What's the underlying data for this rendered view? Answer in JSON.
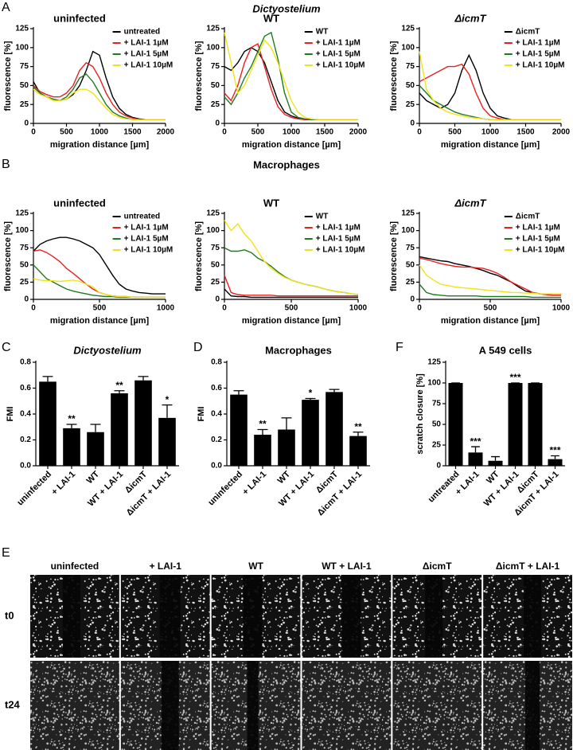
{
  "panel_labels": [
    "A",
    "B",
    "C",
    "D",
    "F",
    "E"
  ],
  "section_titles": [
    {
      "text": "Dictyostelium",
      "style": "italic"
    },
    {
      "text": "Macrophages",
      "style": "normal"
    }
  ],
  "chart_data": [
    {
      "type": "line",
      "title": "uninfected",
      "title_style": "normal",
      "xlabel": "migration distance [µm]",
      "ylabel": "fluorescence [%]",
      "x": [
        0,
        100,
        200,
        300,
        400,
        500,
        600,
        700,
        800,
        900,
        1000,
        1100,
        1200,
        1300,
        1400,
        1500,
        1600,
        1700,
        1800,
        1900,
        2000
      ],
      "xlim": [
        0,
        2000
      ],
      "xticks": [
        0,
        500,
        1000,
        1500,
        2000
      ],
      "ylim": [
        0,
        125
      ],
      "yticks": [
        0,
        25,
        50,
        75,
        100,
        125
      ],
      "series": [
        {
          "name": "untreated",
          "color": "#000000",
          "values": [
            55,
            40,
            35,
            32,
            30,
            32,
            38,
            50,
            70,
            95,
            90,
            60,
            35,
            20,
            12,
            8,
            6,
            5,
            5,
            5,
            5
          ]
        },
        {
          "name": "+ LAI-1 1µM",
          "color": "#e8201f",
          "values": [
            50,
            42,
            38,
            35,
            35,
            40,
            50,
            70,
            80,
            75,
            60,
            40,
            25,
            15,
            10,
            7,
            5,
            5,
            5,
            5,
            5
          ]
        },
        {
          "name": "+ LAI-1 5µM",
          "color": "#1f7a1f",
          "values": [
            48,
            40,
            35,
            32,
            30,
            35,
            45,
            60,
            65,
            55,
            40,
            25,
            15,
            10,
            7,
            5,
            5,
            5,
            5,
            5,
            5
          ]
        },
        {
          "name": "+ LAI-1 10µM",
          "color": "#f2e21a",
          "values": [
            45,
            38,
            35,
            30,
            30,
            32,
            40,
            45,
            45,
            40,
            30,
            20,
            12,
            8,
            6,
            5,
            5,
            5,
            5,
            5,
            5
          ]
        }
      ]
    },
    {
      "type": "line",
      "title": "WT",
      "title_style": "normal",
      "xlabel": "migration distance [µm]",
      "ylabel": "fluorescence [%]",
      "x": [
        0,
        100,
        200,
        300,
        400,
        500,
        600,
        700,
        800,
        900,
        1000,
        1100,
        1200,
        1300,
        1400,
        1500,
        1600,
        1700,
        1800,
        1900,
        2000
      ],
      "xlim": [
        0,
        2000
      ],
      "xticks": [
        0,
        500,
        1000,
        1500,
        2000
      ],
      "ylim": [
        0,
        125
      ],
      "yticks": [
        0,
        25,
        50,
        75,
        100,
        125
      ],
      "series": [
        {
          "name": "WT",
          "color": "#000000",
          "values": [
            75,
            70,
            80,
            95,
            100,
            95,
            80,
            55,
            30,
            15,
            10,
            7,
            5,
            5,
            5,
            5,
            5,
            5,
            5,
            5,
            5
          ]
        },
        {
          "name": "+ LAI-1 1µM",
          "color": "#e8201f",
          "values": [
            40,
            30,
            50,
            80,
            100,
            105,
            75,
            45,
            22,
            12,
            8,
            6,
            5,
            5,
            5,
            5,
            5,
            5,
            5,
            5,
            5
          ]
        },
        {
          "name": "+ LAI-1 5µM",
          "color": "#1f7a1f",
          "values": [
            35,
            25,
            40,
            60,
            75,
            95,
            115,
            120,
            85,
            40,
            15,
            8,
            6,
            5,
            5,
            5,
            5,
            5,
            5,
            5,
            5
          ]
        },
        {
          "name": "+ LAI-1 10µM",
          "color": "#f2e21a",
          "values": [
            120,
            80,
            40,
            50,
            70,
            90,
            110,
            100,
            80,
            55,
            30,
            15,
            8,
            6,
            5,
            5,
            5,
            5,
            5,
            5,
            5
          ]
        }
      ]
    },
    {
      "type": "line",
      "title": "ΔicmT",
      "title_style": "italic",
      "xlabel": "migration distance [µm]",
      "ylabel": "fluorescence [%]",
      "x": [
        0,
        100,
        200,
        300,
        400,
        500,
        600,
        700,
        800,
        900,
        1000,
        1100,
        1200,
        1300,
        1400,
        1500,
        1600,
        1700,
        1800,
        1900,
        2000
      ],
      "xlim": [
        0,
        2000
      ],
      "xticks": [
        0,
        500,
        1000,
        1500,
        2000
      ],
      "ylim": [
        0,
        125
      ],
      "yticks": [
        0,
        25,
        50,
        75,
        100,
        125
      ],
      "series": [
        {
          "name": "ΔicmT",
          "color": "#000000",
          "values": [
            40,
            30,
            25,
            20,
            25,
            40,
            70,
            90,
            70,
            40,
            20,
            10,
            7,
            5,
            5,
            5,
            5,
            5,
            5,
            5,
            5
          ]
        },
        {
          "name": "+ LAI-1 1µM",
          "color": "#e8201f",
          "values": [
            55,
            60,
            65,
            70,
            75,
            75,
            78,
            65,
            40,
            20,
            10,
            7,
            5,
            5,
            5,
            5,
            5,
            5,
            5,
            5,
            5
          ]
        },
        {
          "name": "+ LAI-1 5µM",
          "color": "#1f7a1f",
          "values": [
            50,
            40,
            30,
            25,
            20,
            15,
            12,
            10,
            8,
            6,
            5,
            5,
            5,
            5,
            5,
            5,
            5,
            5,
            5,
            5,
            5
          ]
        },
        {
          "name": "+ LAI-1 10µM",
          "color": "#f2e21a",
          "values": [
            95,
            45,
            30,
            20,
            15,
            12,
            10,
            8,
            7,
            6,
            5,
            5,
            5,
            5,
            5,
            5,
            5,
            5,
            5,
            5,
            5
          ]
        }
      ]
    },
    {
      "type": "line",
      "title": "uninfected",
      "title_style": "normal",
      "xlabel": "migration distance [µm]",
      "ylabel": "fluorescence [%]",
      "x": [
        0,
        50,
        100,
        150,
        200,
        250,
        300,
        350,
        400,
        450,
        500,
        550,
        600,
        650,
        700,
        750,
        800,
        850,
        900,
        950,
        1000
      ],
      "xlim": [
        0,
        1000
      ],
      "xticks": [
        0,
        500,
        1000
      ],
      "ylim": [
        0,
        125
      ],
      "yticks": [
        0,
        25,
        50,
        75,
        100,
        125
      ],
      "series": [
        {
          "name": "untreated",
          "color": "#000000",
          "values": [
            70,
            80,
            85,
            88,
            90,
            90,
            88,
            85,
            80,
            75,
            65,
            50,
            35,
            22,
            15,
            12,
            10,
            9,
            8,
            8,
            8
          ]
        },
        {
          "name": "+ LAI-1 1µM",
          "color": "#e8201f",
          "values": [
            70,
            72,
            68,
            62,
            55,
            45,
            38,
            30,
            22,
            15,
            10,
            7,
            5,
            4,
            4,
            3,
            3,
            3,
            3,
            3,
            3
          ]
        },
        {
          "name": "+ LAI-1 5µM",
          "color": "#1f7a1f",
          "values": [
            50,
            40,
            30,
            25,
            20,
            15,
            12,
            10,
            8,
            6,
            5,
            4,
            4,
            3,
            3,
            3,
            3,
            3,
            3,
            3,
            3
          ]
        },
        {
          "name": "+ LAI-1 10µM",
          "color": "#f2e21a",
          "values": [
            30,
            28,
            27,
            27,
            26,
            27,
            28,
            26,
            22,
            18,
            10,
            7,
            5,
            4,
            4,
            3,
            3,
            3,
            3,
            3,
            3
          ]
        }
      ]
    },
    {
      "type": "line",
      "title": "WT",
      "title_style": "normal",
      "xlabel": "migration distance [µm]",
      "ylabel": "fluorescence [%]",
      "x": [
        0,
        50,
        100,
        150,
        200,
        250,
        300,
        350,
        400,
        450,
        500,
        550,
        600,
        650,
        700,
        750,
        800,
        850,
        900,
        950,
        1000
      ],
      "xlim": [
        0,
        1000
      ],
      "xticks": [
        0,
        500,
        1000
      ],
      "ylim": [
        0,
        125
      ],
      "yticks": [
        0,
        25,
        50,
        75,
        100,
        125
      ],
      "series": [
        {
          "name": "WT",
          "color": "#000000",
          "values": [
            15,
            5,
            4,
            4,
            3,
            3,
            3,
            3,
            3,
            3,
            3,
            3,
            3,
            3,
            3,
            3,
            3,
            3,
            3,
            3,
            3
          ]
        },
        {
          "name": "+ LAI-1 1µM",
          "color": "#e8201f",
          "values": [
            35,
            10,
            7,
            6,
            6,
            6,
            6,
            6,
            5,
            5,
            5,
            5,
            5,
            5,
            5,
            5,
            5,
            5,
            5,
            5,
            5
          ]
        },
        {
          "name": "+ LAI-1 5µM",
          "color": "#1f7a1f",
          "values": [
            75,
            70,
            70,
            72,
            68,
            60,
            55,
            48,
            40,
            33,
            28,
            25,
            22,
            20,
            18,
            15,
            13,
            11,
            10,
            8,
            7
          ]
        },
        {
          "name": "+ LAI-1 10µM",
          "color": "#f2e21a",
          "values": [
            115,
            100,
            110,
            95,
            85,
            70,
            55,
            45,
            38,
            32,
            28,
            25,
            22,
            20,
            18,
            15,
            13,
            11,
            10,
            8,
            7
          ]
        }
      ]
    },
    {
      "type": "line",
      "title": "ΔicmT",
      "title_style": "italic",
      "xlabel": "migration distance [µm]",
      "ylabel": "fluorescence [%]",
      "x": [
        0,
        50,
        100,
        150,
        200,
        250,
        300,
        350,
        400,
        450,
        500,
        550,
        600,
        650,
        700,
        750,
        800,
        850,
        900,
        950,
        1000
      ],
      "xlim": [
        0,
        1000
      ],
      "xticks": [
        0,
        500,
        1000
      ],
      "ylim": [
        0,
        125
      ],
      "yticks": [
        0,
        25,
        50,
        75,
        100,
        125
      ],
      "series": [
        {
          "name": "ΔicmT",
          "color": "#000000",
          "values": [
            62,
            60,
            58,
            56,
            55,
            52,
            50,
            48,
            45,
            42,
            38,
            35,
            30,
            25,
            18,
            12,
            10,
            8,
            7,
            6,
            6
          ]
        },
        {
          "name": "+ LAI-1 1µM",
          "color": "#e8201f",
          "values": [
            60,
            58,
            55,
            52,
            50,
            48,
            47,
            47,
            46,
            45,
            42,
            38,
            32,
            25,
            20,
            15,
            10,
            8,
            7,
            6,
            6
          ]
        },
        {
          "name": "+ LAI-1 5µM",
          "color": "#1f7a1f",
          "values": [
            22,
            10,
            7,
            6,
            5,
            5,
            5,
            5,
            5,
            4,
            4,
            4,
            4,
            4,
            4,
            4,
            3,
            3,
            3,
            3,
            3
          ]
        },
        {
          "name": "+ LAI-1 10µM",
          "color": "#f2e21a",
          "values": [
            50,
            35,
            28,
            22,
            20,
            18,
            17,
            16,
            15,
            14,
            13,
            12,
            11,
            10,
            10,
            9,
            9,
            8,
            8,
            8,
            8
          ]
        }
      ]
    },
    {
      "type": "bar",
      "title": "Dictyostelium",
      "title_style": "italic",
      "ylabel": "FMI",
      "color": "#000000",
      "categories": [
        "uninfected",
        "+ LAI-1",
        "WT",
        "WT + LAI-1",
        "ΔicmT",
        "ΔicmT + LAI-1"
      ],
      "values": [
        0.65,
        0.29,
        0.26,
        0.56,
        0.66,
        0.37
      ],
      "errors": [
        0.04,
        0.03,
        0.06,
        0.02,
        0.03,
        0.1
      ],
      "annotations": [
        null,
        "**",
        null,
        "**",
        null,
        "*"
      ],
      "ylim": [
        0,
        0.8
      ],
      "yticks": [
        {
          "value": 0,
          "label": "0.0"
        },
        0.2,
        0.4,
        0.6,
        0.8
      ]
    },
    {
      "type": "bar",
      "title": "Macrophages",
      "title_style": "normal",
      "ylabel": "FMI",
      "color": "#000000",
      "categories": [
        "uninfected",
        "+ LAI-1",
        "WT",
        "WT + LAI-1",
        "ΔicmT",
        "ΔicmT + LAI-1"
      ],
      "values": [
        0.55,
        0.24,
        0.28,
        0.51,
        0.57,
        0.23
      ],
      "errors": [
        0.03,
        0.04,
        0.09,
        0.01,
        0.02,
        0.03
      ],
      "annotations": [
        null,
        "**",
        null,
        "*",
        null,
        "**"
      ],
      "ylim": [
        0,
        0.8
      ],
      "yticks": [
        {
          "value": 0,
          "label": "0.0"
        },
        0.2,
        0.4,
        0.6,
        0.8
      ]
    },
    {
      "type": "bar",
      "title": "A 549 cells",
      "title_style": "normal",
      "ylabel": "scratch closure [%]",
      "color": "#000000",
      "categories": [
        "untreated",
        "+ LAI-1",
        "WT",
        "WT + LAI-1",
        "ΔicmT",
        "ΔicmT + LAI-1"
      ],
      "values": [
        100,
        16,
        6,
        100,
        100,
        8
      ],
      "errors": [
        0,
        7,
        5,
        0,
        0,
        4
      ],
      "annotations": [
        null,
        "***",
        null,
        "***",
        null,
        "***"
      ],
      "ylim": [
        0,
        125
      ],
      "yticks": [
        0,
        25,
        50,
        75,
        100,
        125
      ]
    }
  ],
  "image_grid": {
    "columns": [
      "uninfected",
      "+ LAI-1",
      "WT",
      "WT + LAI-1",
      "ΔicmT",
      "ΔicmT + LAI-1"
    ],
    "rows": [
      "t0",
      "t24"
    ]
  }
}
